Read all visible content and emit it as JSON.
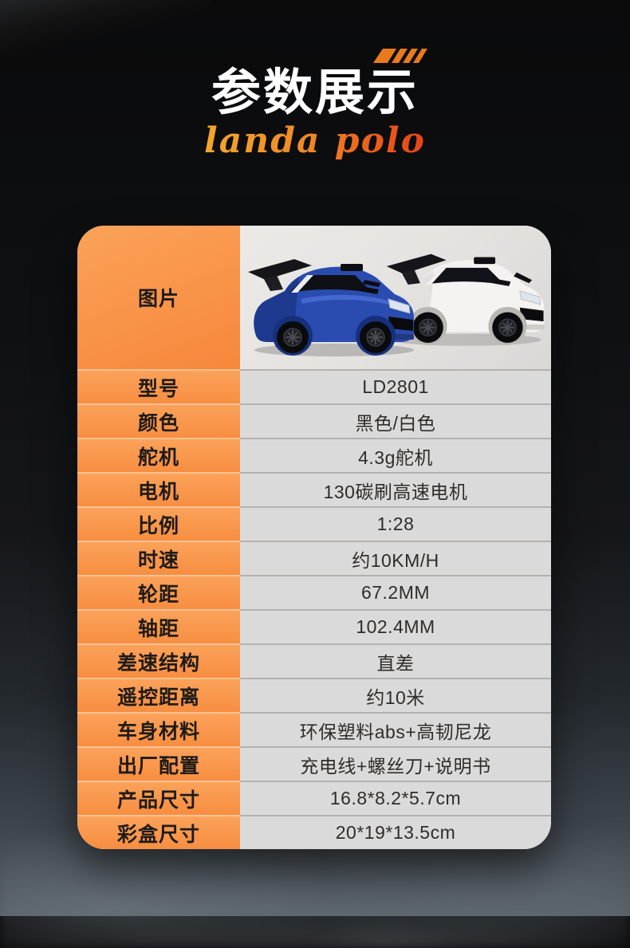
{
  "page": {
    "background_top_color": "#0a0a0b",
    "background_bottom_color": "#575f66"
  },
  "header": {
    "title": "参数展示",
    "subtitle": "landa polo",
    "accent_color": "#e87a1e",
    "flag_icon": "speed-stripes-icon",
    "subtitle_gradient": [
      "#f3a62c",
      "#e5431a"
    ]
  },
  "table": {
    "label_column_color_top": "#fba25a",
    "label_column_color_bottom": "#f78e41",
    "value_column_color": "#dbdada",
    "image_row": {
      "label": "图片",
      "cars": [
        {
          "name": "blue-rc-car",
          "body_color": "#2a4cb0"
        },
        {
          "name": "white-rc-car",
          "body_color": "#f4f3f1"
        }
      ]
    },
    "rows": [
      {
        "label": "型号",
        "value": "LD2801"
      },
      {
        "label": "颜色",
        "value": "黑色/白色"
      },
      {
        "label": "舵机",
        "value": "4.3g舵机"
      },
      {
        "label": "电机",
        "value": "130碳刷高速电机"
      },
      {
        "label": "比例",
        "value": "1:28"
      },
      {
        "label": "时速",
        "value": "约10KM/H"
      },
      {
        "label": "轮距",
        "value": "67.2MM"
      },
      {
        "label": "轴距",
        "value": "102.4MM"
      },
      {
        "label": "差速结构",
        "value": "直差"
      },
      {
        "label": "遥控距离",
        "value": "约10米"
      },
      {
        "label": "车身材料",
        "value": "环保塑料abs+高韧尼龙"
      },
      {
        "label": "出厂配置",
        "value": "充电线+螺丝刀+说明书"
      },
      {
        "label": "产品尺寸",
        "value": "16.8*8.2*5.7cm"
      },
      {
        "label": "彩盒尺寸",
        "value": "20*19*13.5cm"
      }
    ]
  }
}
